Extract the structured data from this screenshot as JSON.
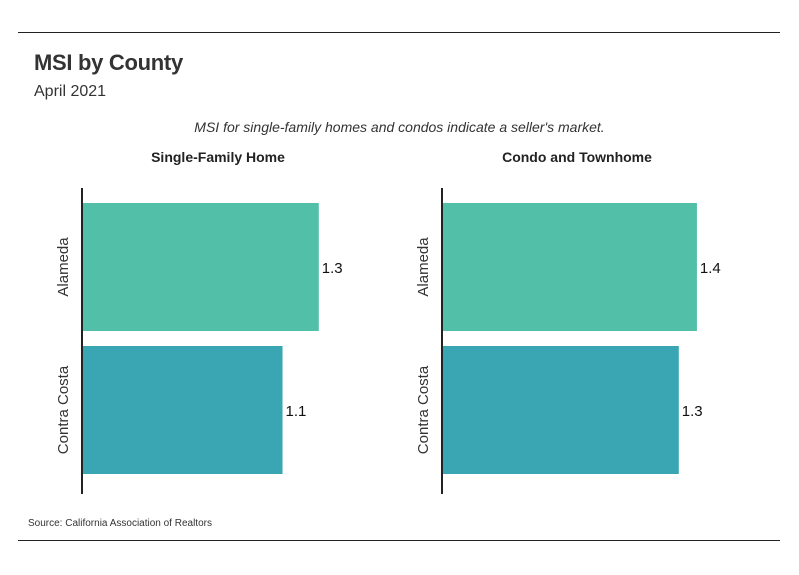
{
  "header": {
    "title": "MSI by County",
    "subtitle": "April 2021",
    "note": "MSI for single-family homes and condos indicate a seller's market."
  },
  "footer": {
    "source": "Source:  California Association of Realtors"
  },
  "colors": {
    "alameda": "#52bfa8",
    "contra_costa": "#3aa5b3",
    "axis": "#222222"
  },
  "chart_data": [
    {
      "type": "bar",
      "orientation": "horizontal",
      "title": "Single-Family Home",
      "categories": [
        "Alameda",
        "Contra Costa"
      ],
      "values": [
        1.3,
        1.1
      ],
      "value_labels": [
        "1.3",
        "1.1"
      ],
      "xlim": [
        0,
        1.45
      ]
    },
    {
      "type": "bar",
      "orientation": "horizontal",
      "title": "Condo and Townhome",
      "categories": [
        "Alameda",
        "Contra Costa"
      ],
      "values": [
        1.4,
        1.3
      ],
      "value_labels": [
        "1.4",
        "1.3"
      ],
      "xlim": [
        0,
        1.45
      ]
    }
  ]
}
